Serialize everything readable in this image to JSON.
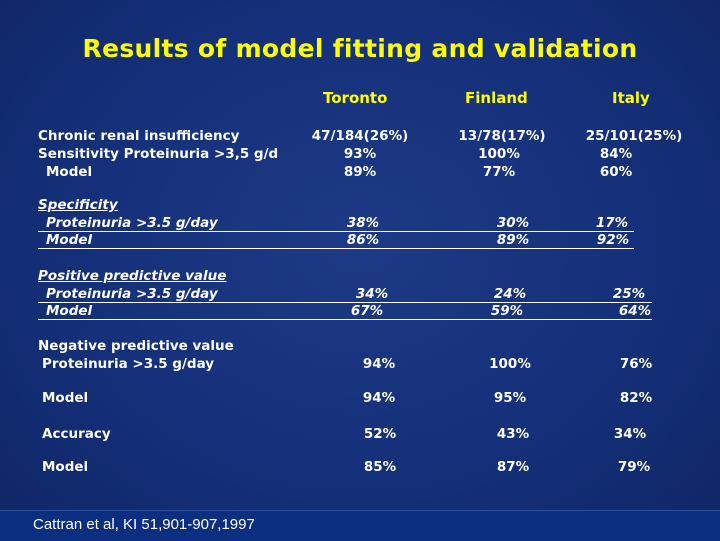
{
  "title": "Results of model fitting and validation",
  "columns": [
    "Toronto",
    "Finland",
    "Italy"
  ],
  "rows": {
    "crf_label": "Chronic renal insufficiency",
    "crf_values": [
      "47/184(26%)",
      "13/78(17%)",
      "25/101(25%)"
    ],
    "sens_label": "Sensitivity Proteinuria >3,5 g/d",
    "sens_values": [
      "93%",
      "100%",
      "84%"
    ],
    "sens_model_label": "Model",
    "sens_model_values": [
      "89%",
      "77%",
      "60%"
    ],
    "spec_label": "Specificity",
    "spec_prot_label": "Proteinuria >3.5 g/day",
    "spec_prot_values": [
      "38%",
      "30%",
      "17%"
    ],
    "spec_model_label": "Model",
    "spec_model_values": [
      "86%",
      "89%",
      "92%"
    ],
    "ppv_label": "Positive predictive value",
    "ppv_prot_label": "Proteinuria >3.5 g/day",
    "ppv_prot_values": [
      "34%",
      "24%",
      "25%"
    ],
    "ppv_model_label": "Model",
    "ppv_model_values": [
      "67%",
      "59%",
      "64%"
    ],
    "npv_label": "Negative predictive value",
    "npv_prot_label": "Proteinuria >3.5 g/day",
    "npv_prot_values": [
      "94%",
      "100%",
      "76%"
    ],
    "npv_model_label": "Model",
    "npv_model_values": [
      "94%",
      "95%",
      "82%"
    ],
    "acc_label": "Accuracy",
    "acc_values": [
      "52%",
      "43%",
      "34%"
    ],
    "acc_model_label": "Model",
    "acc_model_values": [
      "85%",
      "87%",
      "79%"
    ]
  },
  "citation": "Cattran et al, KI 51,901-907,1997",
  "colors": {
    "background": "#15307a",
    "title": "#ffff00",
    "text": "#ffffff"
  }
}
